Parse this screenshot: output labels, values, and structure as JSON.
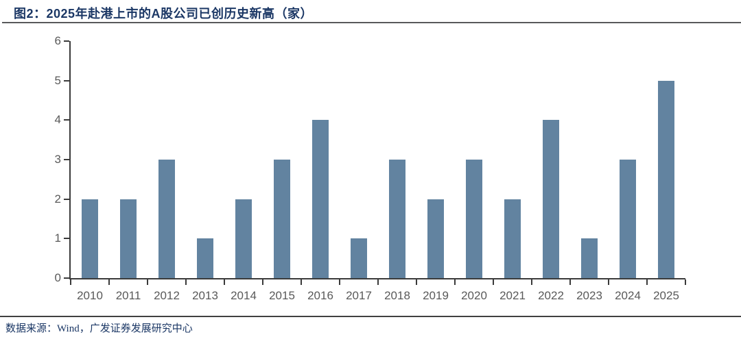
{
  "figure": {
    "title": "图2：2025年赴港上市的A股公司已创历史新高（家）",
    "source_note": "数据来源：Wind，广发证券发展研究中心"
  },
  "colors": {
    "bar": "#6283a0",
    "title_text": "#1b3765",
    "axis_line": "#3a3a3a",
    "tick_label": "#595959",
    "rule": "#58595b"
  },
  "chart_data": {
    "type": "bar",
    "title": "图2：2025年赴港上市的A股公司已创历史新高（家）",
    "categories": [
      "2010",
      "2011",
      "2012",
      "2013",
      "2014",
      "2015",
      "2016",
      "2017",
      "2018",
      "2019",
      "2020",
      "2021",
      "2022",
      "2023",
      "2024",
      "2025"
    ],
    "values": [
      2,
      2,
      3,
      1,
      2,
      3,
      4,
      1,
      3,
      2,
      3,
      2,
      4,
      1,
      3,
      5
    ],
    "xlabel": "",
    "ylabel": "",
    "ylim": [
      0,
      6
    ],
    "ytick_step": 1,
    "yticks": [
      "0",
      "1",
      "2",
      "3",
      "4",
      "5",
      "6"
    ],
    "grid": false,
    "legend": "none"
  }
}
